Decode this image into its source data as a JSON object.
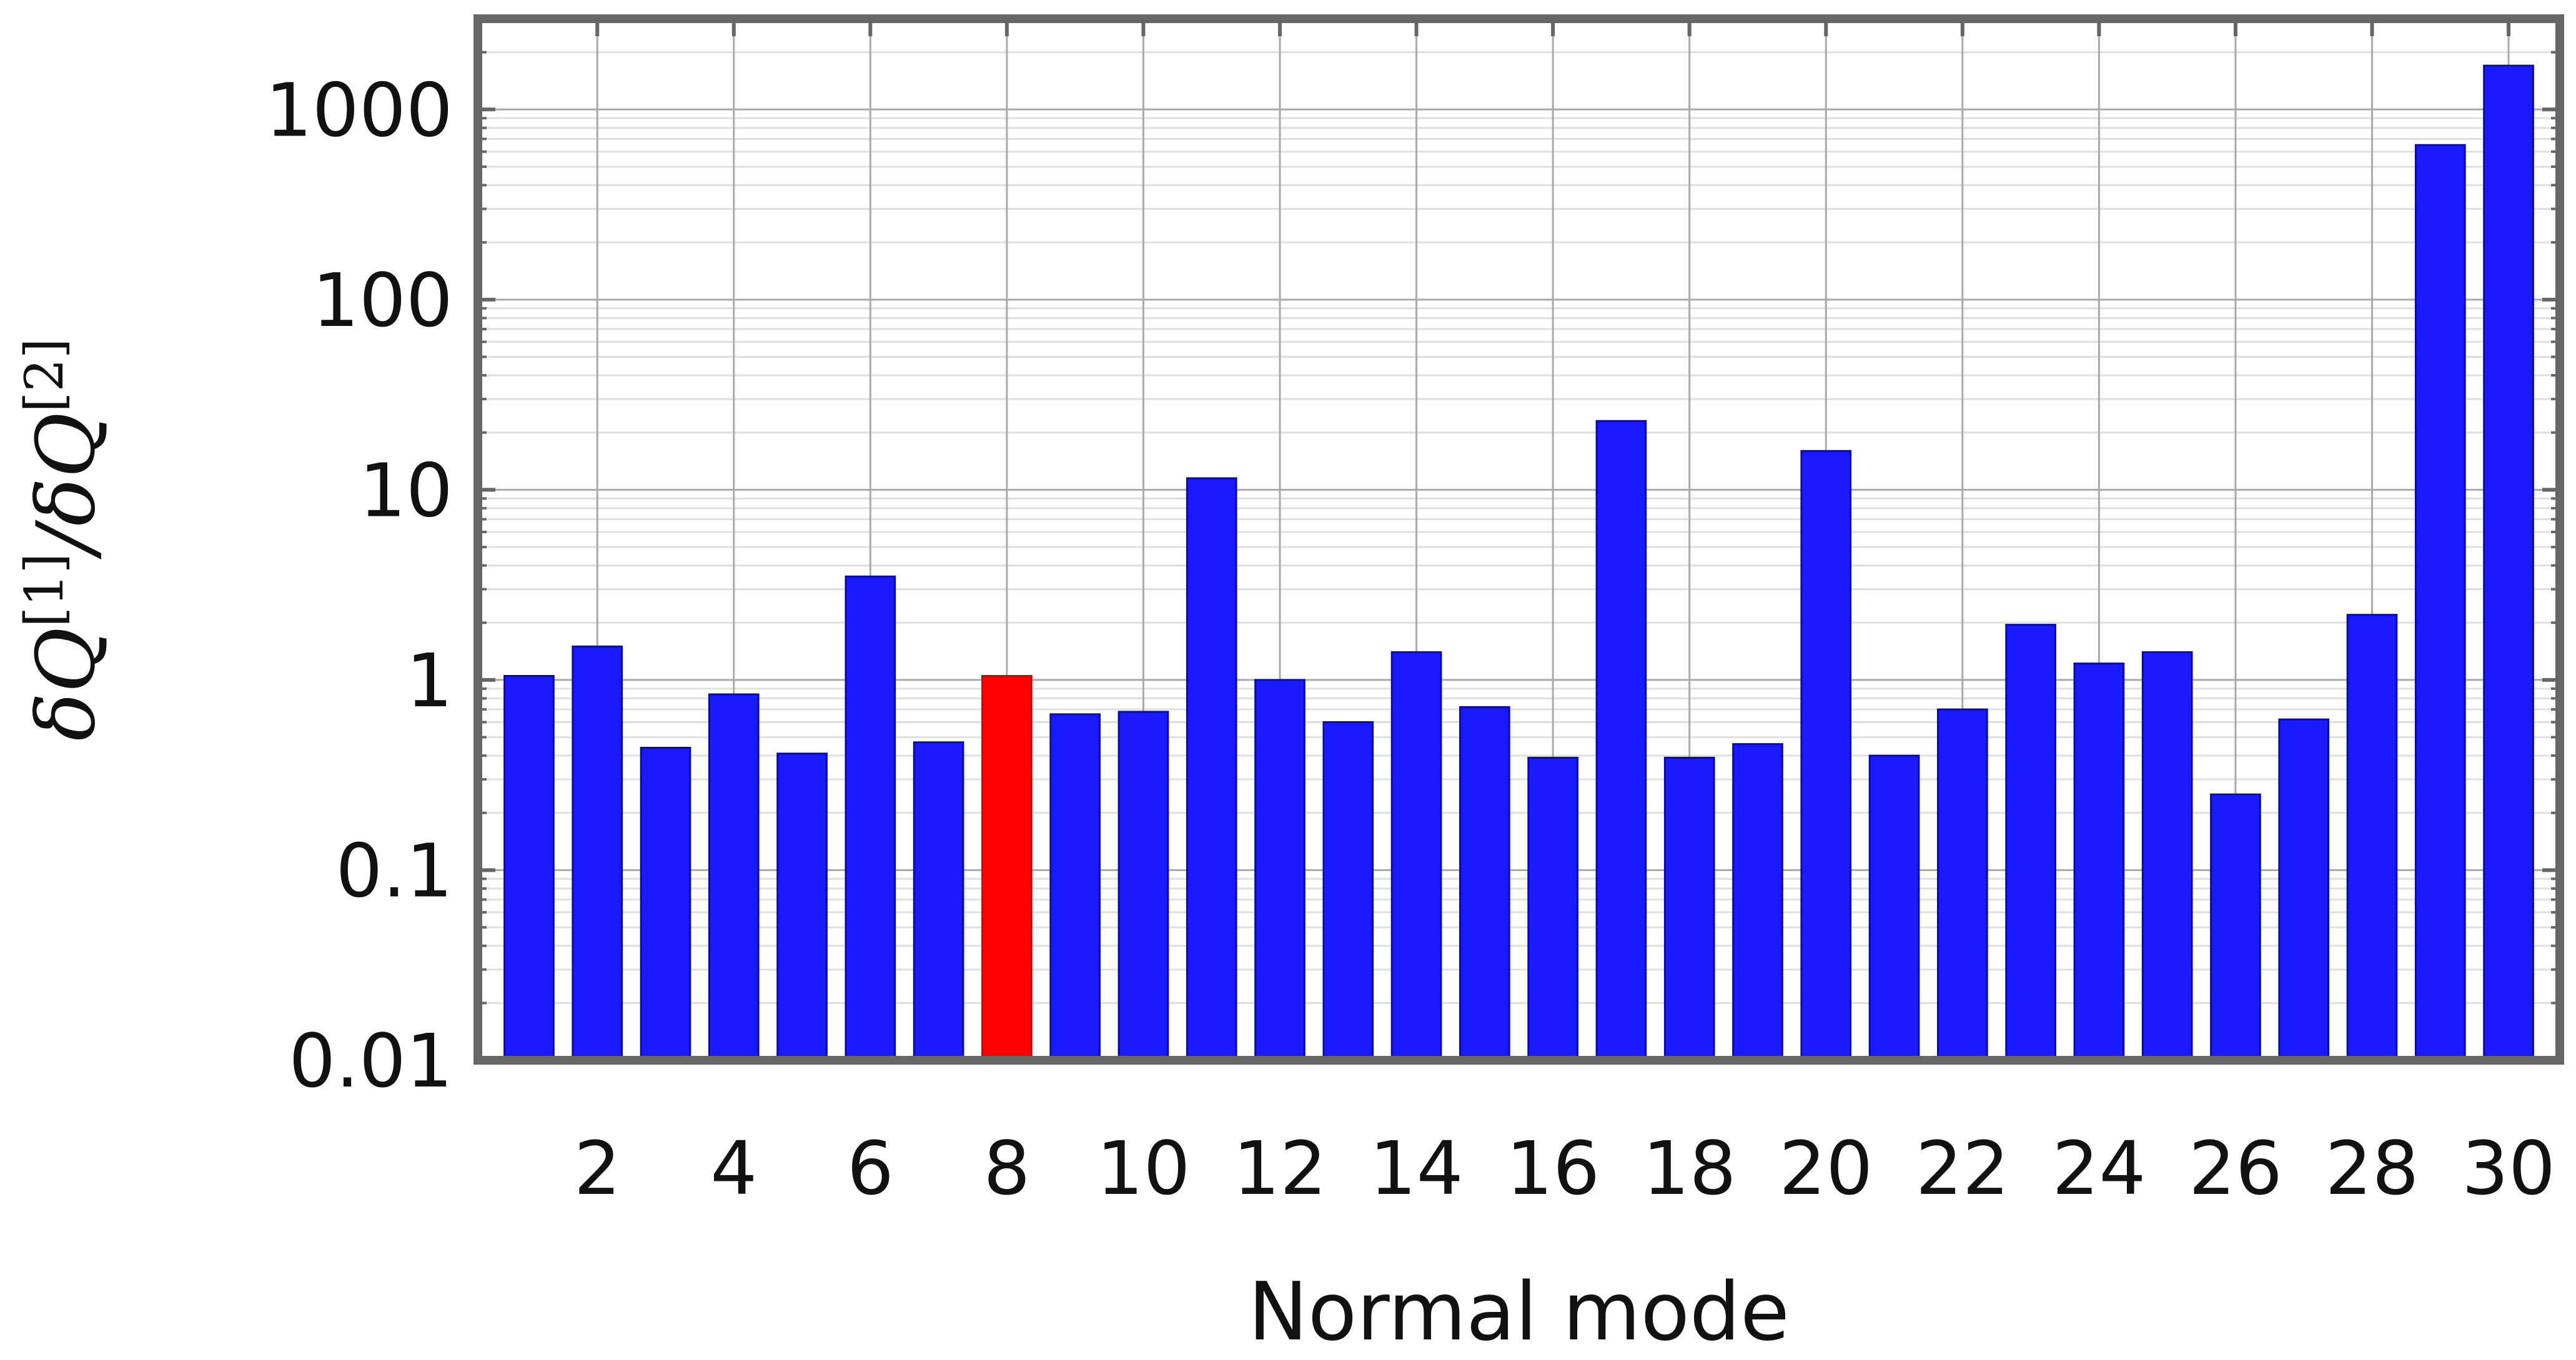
{
  "chart_data": {
    "type": "bar",
    "xlabel": "Normal mode",
    "ylabel": {
      "delta": "δ",
      "q": "Q",
      "sup1": "[1]",
      "slash": "/",
      "sup2": "[2]"
    },
    "yscale": "log",
    "ylim": [
      0.01,
      3000
    ],
    "yticks": [
      0.01,
      0.1,
      1,
      10,
      100,
      1000
    ],
    "ytick_labels": [
      "0.01",
      "0.1",
      "1",
      "10",
      "100",
      "1000"
    ],
    "xtick_positions": [
      2,
      4,
      6,
      8,
      10,
      12,
      14,
      16,
      18,
      20,
      22,
      24,
      26,
      28,
      30
    ],
    "xtick_labels": [
      "2",
      "4",
      "6",
      "8",
      "10",
      "12",
      "14",
      "16",
      "18",
      "20",
      "22",
      "24",
      "26",
      "28",
      "30"
    ],
    "grid": "on",
    "categories": [
      1,
      2,
      3,
      4,
      5,
      6,
      7,
      8,
      9,
      10,
      11,
      12,
      13,
      14,
      15,
      16,
      17,
      18,
      19,
      20,
      21,
      22,
      23,
      24,
      25,
      26,
      27,
      28,
      29,
      30
    ],
    "values": [
      1.05,
      1.5,
      0.44,
      0.84,
      0.41,
      3.5,
      0.47,
      1.05,
      0.66,
      0.68,
      11.5,
      1.0,
      0.6,
      1.4,
      0.72,
      0.39,
      23,
      0.39,
      0.46,
      16,
      0.4,
      0.7,
      1.95,
      1.22,
      1.4,
      0.25,
      0.62,
      2.2,
      650,
      1700
    ],
    "colors": {
      "default_bar": "#1a1aff",
      "highlight_bar": "#ff0000",
      "frame": "#666666",
      "grid_major": "#aaaaaa",
      "grid_minor": "#e0e0e0"
    },
    "highlight_category": 8
  }
}
